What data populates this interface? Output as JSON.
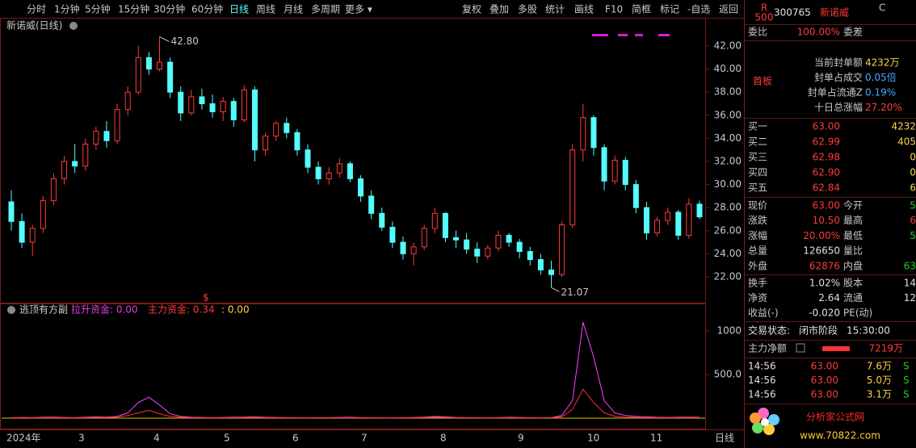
{
  "toolbar": {
    "periods": [
      "分时",
      "1分钟",
      "5分钟",
      "15分钟",
      "30分钟",
      "60分钟",
      "日线",
      "周线",
      "月线",
      "多周期",
      "更多 ▾"
    ],
    "actions": [
      "复权",
      "叠加",
      "多股",
      "统计",
      "画线",
      "F10",
      "简框",
      "标记",
      "-自选",
      "返回"
    ]
  },
  "chart": {
    "title": "新诺威(日线)",
    "high_label": "42.80",
    "low_label": "21.07",
    "yticks": [
      {
        "value": 42,
        "label": "42.00"
      },
      {
        "value": 40,
        "label": "40.00"
      },
      {
        "value": 38,
        "label": "38.00"
      },
      {
        "value": 36,
        "label": "36.00"
      },
      {
        "value": 34,
        "label": "34.00"
      },
      {
        "value": 32,
        "label": "32.00"
      },
      {
        "value": 30,
        "label": "30.00"
      },
      {
        "value": 28,
        "label": "28.00"
      },
      {
        "value": 26,
        "label": "26.00"
      },
      {
        "value": 24,
        "label": "24.00"
      },
      {
        "value": 22,
        "label": "22.00"
      }
    ],
    "candles": [
      [
        28.5,
        29.5,
        26,
        26.8
      ],
      [
        26.8,
        27.5,
        24.5,
        25
      ],
      [
        25,
        26.5,
        23.8,
        26.2
      ],
      [
        26.2,
        29,
        25.8,
        28.6
      ],
      [
        28.6,
        31,
        28.2,
        30.5
      ],
      [
        30.5,
        32.5,
        30,
        32
      ],
      [
        32,
        33.5,
        31,
        31.6
      ],
      [
        31.6,
        34,
        31.2,
        33.5
      ],
      [
        33.5,
        35,
        33,
        34.6
      ],
      [
        34.6,
        35.5,
        33.2,
        33.8
      ],
      [
        33.8,
        37,
        33.5,
        36.5
      ],
      [
        36.5,
        38.5,
        36,
        38
      ],
      [
        38,
        42,
        37.8,
        41
      ],
      [
        41,
        41.5,
        39.5,
        40
      ],
      [
        40,
        42.8,
        39.8,
        40.6
      ],
      [
        40.6,
        41,
        37.5,
        38
      ],
      [
        38,
        38.5,
        35.5,
        36.2
      ],
      [
        36.2,
        38.2,
        36,
        37.6
      ],
      [
        37.6,
        38.3,
        36.5,
        37
      ],
      [
        37,
        37.8,
        35.8,
        36.3
      ],
      [
        36.3,
        37.6,
        35.5,
        37.2
      ],
      [
        37.2,
        37.5,
        35,
        35.6
      ],
      [
        35.6,
        38.6,
        35.4,
        38.2
      ],
      [
        38.2,
        38.5,
        32,
        33
      ],
      [
        33,
        34.5,
        32.5,
        34.2
      ],
      [
        34.2,
        35.5,
        33.8,
        35.3
      ],
      [
        35.3,
        35.8,
        34,
        34.5
      ],
      [
        34.5,
        34.8,
        32.5,
        33
      ],
      [
        33,
        33.5,
        31,
        31.5
      ],
      [
        31.5,
        32,
        30,
        30.5
      ],
      [
        30.5,
        31.5,
        30,
        31
      ],
      [
        31,
        32.3,
        30.6,
        31.8
      ],
      [
        31.8,
        32,
        30.2,
        30.5
      ],
      [
        30.5,
        30.8,
        28.5,
        29
      ],
      [
        29,
        29.5,
        27,
        27.5
      ],
      [
        27.5,
        28,
        26,
        26.3
      ],
      [
        26.3,
        26.8,
        24.5,
        25
      ],
      [
        25,
        25.5,
        23.5,
        24
      ],
      [
        24,
        25,
        23,
        24.6
      ],
      [
        24.6,
        26.5,
        24.3,
        26.2
      ],
      [
        26.2,
        28,
        25.8,
        27.5
      ],
      [
        27.5,
        27.6,
        25,
        25.4
      ],
      [
        25.4,
        26,
        24.5,
        25.2
      ],
      [
        25.2,
        25.8,
        24,
        24.4
      ],
      [
        24.4,
        25,
        23.2,
        23.8
      ],
      [
        23.8,
        24.8,
        23.5,
        24.5
      ],
      [
        24.5,
        26,
        24.2,
        25.6
      ],
      [
        25.6,
        25.8,
        24.6,
        25
      ],
      [
        25,
        25.3,
        23.6,
        24.2
      ],
      [
        24.2,
        24.6,
        23,
        23.5
      ],
      [
        23.5,
        24,
        22.2,
        22.6
      ],
      [
        22.6,
        23.4,
        21.07,
        22.2
      ],
      [
        22.2,
        26.8,
        22,
        26.5
      ],
      [
        26.5,
        33.5,
        26.2,
        33
      ],
      [
        33,
        37,
        32,
        35.8
      ],
      [
        35.8,
        36,
        32.5,
        33.2
      ],
      [
        33.2,
        33.5,
        29.5,
        30.3
      ],
      [
        30.3,
        32.5,
        30,
        32.1
      ],
      [
        32.1,
        32.4,
        29.5,
        30
      ],
      [
        30,
        30.4,
        27.5,
        28
      ],
      [
        28,
        28.5,
        25.2,
        25.8
      ],
      [
        25.8,
        27.2,
        25.5,
        26.9
      ],
      [
        26.9,
        28,
        26.5,
        27.6
      ],
      [
        27.6,
        27.8,
        25.2,
        25.6
      ],
      [
        25.6,
        28.8,
        25.3,
        28.3
      ],
      [
        28.3,
        28.6,
        27,
        27.2
      ]
    ],
    "xlabels": [
      "2024年",
      "3",
      "4",
      "5",
      "6",
      "7",
      "8",
      "9",
      "10",
      "11"
    ],
    "period_label": "日线"
  },
  "indicator": {
    "name": "逃顶有方副",
    "items": [
      "拉升资金: 0.00",
      "主力资金: 0.34",
      ": 0.00"
    ],
    "signal": "$",
    "yticks": [
      1000,
      {
        "value": 500,
        "label": "500.0"
      }
    ],
    "lines": [
      [
        5,
        8,
        6,
        10,
        12,
        8,
        6,
        10,
        15,
        12,
        20,
        60,
        180,
        240,
        150,
        50,
        20,
        10,
        8,
        6,
        8,
        10,
        12,
        15,
        10,
        8,
        6,
        5,
        4,
        5,
        6,
        8,
        10,
        6,
        5,
        4,
        3,
        5,
        8,
        12,
        20,
        15,
        8,
        6,
        5,
        4,
        6,
        10,
        8,
        5,
        4,
        6,
        30,
        200,
        1100,
        700,
        200,
        60,
        30,
        20,
        15,
        10,
        8,
        10,
        12,
        10
      ],
      [
        3,
        4,
        3,
        5,
        6,
        4,
        3,
        5,
        8,
        6,
        10,
        30,
        60,
        90,
        50,
        20,
        10,
        5,
        4,
        3,
        4,
        5,
        6,
        8,
        5,
        4,
        3,
        2,
        2,
        3,
        3,
        4,
        5,
        3,
        2,
        2,
        1,
        2,
        4,
        6,
        10,
        8,
        4,
        3,
        2,
        2,
        3,
        5,
        4,
        3,
        2,
        3,
        15,
        100,
        330,
        180,
        60,
        20,
        10,
        8,
        6,
        5,
        4,
        5,
        6,
        5
      ]
    ]
  },
  "quote": {
    "badge_r": "R",
    "badge_500": "500",
    "code": "300765",
    "name": "新诺威",
    "flag": "C",
    "weibi_label": "委比",
    "weibi": "100.00%",
    "weicha_label": "委差"
  },
  "seal": {
    "tag": "首板",
    "rows": [
      [
        "当前封单额",
        "4232万"
      ],
      [
        "封单占成交",
        "0.05倍"
      ],
      [
        "封单占流通Z",
        "0.19%"
      ],
      [
        "十日总涨幅",
        "27.20%"
      ]
    ]
  },
  "book": [
    [
      "买一",
      "63.00",
      "4232"
    ],
    [
      "买二",
      "62.99",
      "405"
    ],
    [
      "买三",
      "62.98",
      "0"
    ],
    [
      "买四",
      "62.90",
      "0"
    ],
    [
      "买五",
      "62.84",
      "6"
    ]
  ],
  "stats": [
    [
      "现价",
      "63.00",
      "今开",
      "5"
    ],
    [
      "涨跌",
      "10.50",
      "最高",
      "6"
    ],
    [
      "涨幅",
      "20.00%",
      "最低",
      "5"
    ],
    [
      "总量",
      "126650",
      "量比"
    ],
    [
      "外盘",
      "62876",
      "内盘",
      "63"
    ]
  ],
  "finance": [
    [
      "换手",
      "1.02%",
      "股本",
      "14"
    ],
    [
      "净资",
      "2.64",
      "流通",
      "12"
    ],
    [
      "收益(-)",
      "-0.020",
      "PE(动)"
    ]
  ],
  "status": {
    "label": "交易状态:",
    "phase": "闭市阶段",
    "time": "15:30:00"
  },
  "flow": {
    "label": "主力净额",
    "value": "7219万"
  },
  "trades": [
    [
      "14:56",
      "63.00",
      "7.6万",
      "S"
    ],
    [
      "14:56",
      "63.00",
      "5.0万",
      "S"
    ],
    [
      "14:56",
      "63.00",
      "3.1万",
      "S"
    ]
  ],
  "watermark": {
    "name": "分析家公式网",
    "url": "www.70822.com"
  }
}
